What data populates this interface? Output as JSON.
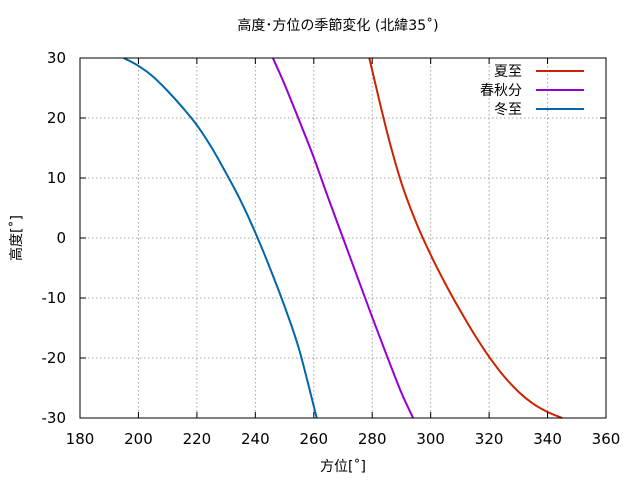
{
  "chart_data": {
    "type": "line",
    "title": "高度･方位の季節変化 (北緯35˚)",
    "xlabel": "方位[˚]",
    "ylabel": "高度[˚]",
    "xlim": [
      180,
      360
    ],
    "ylim": [
      -30,
      30
    ],
    "xticks": [
      180,
      200,
      220,
      240,
      260,
      280,
      300,
      320,
      340,
      360
    ],
    "yticks": [
      -30,
      -20,
      -10,
      0,
      10,
      20,
      30
    ],
    "grid": true,
    "legend_position": "top-right",
    "series": [
      {
        "name": "夏至",
        "color": "#cc2200",
        "x": [
          279.0,
          285.0,
          290.0,
          295.0,
          300.0,
          305.0,
          310.0,
          315.0,
          320.0,
          325.0,
          330.0,
          335.0,
          340.0,
          345.0
        ],
        "y": [
          30.0,
          17.8,
          9.2,
          2.6,
          -2.8,
          -7.6,
          -12.0,
          -16.1,
          -19.8,
          -23.0,
          -25.6,
          -27.6,
          -29.0,
          -30.0
        ]
      },
      {
        "name": "春秋分",
        "color": "#9400d3",
        "x": [
          246.0,
          250.0,
          255.0,
          260.0,
          265.0,
          270.0,
          275.0,
          280.0,
          285.0,
          290.0,
          294.0
        ],
        "y": [
          30.0,
          25.6,
          19.6,
          13.4,
          6.6,
          0.0,
          -6.6,
          -13.2,
          -19.6,
          -25.8,
          -30.0
        ]
      },
      {
        "name": "冬至",
        "color": "#0066aa",
        "x": [
          195.0,
          200.0,
          205.0,
          210.0,
          215.0,
          220.0,
          225.0,
          230.0,
          235.0,
          240.0,
          245.0,
          250.0,
          255.0,
          261.0
        ],
        "y": [
          30.0,
          28.7,
          26.9,
          24.5,
          21.8,
          18.8,
          15.1,
          10.8,
          6.2,
          0.9,
          -5.0,
          -11.4,
          -18.6,
          -30.0
        ]
      }
    ]
  }
}
